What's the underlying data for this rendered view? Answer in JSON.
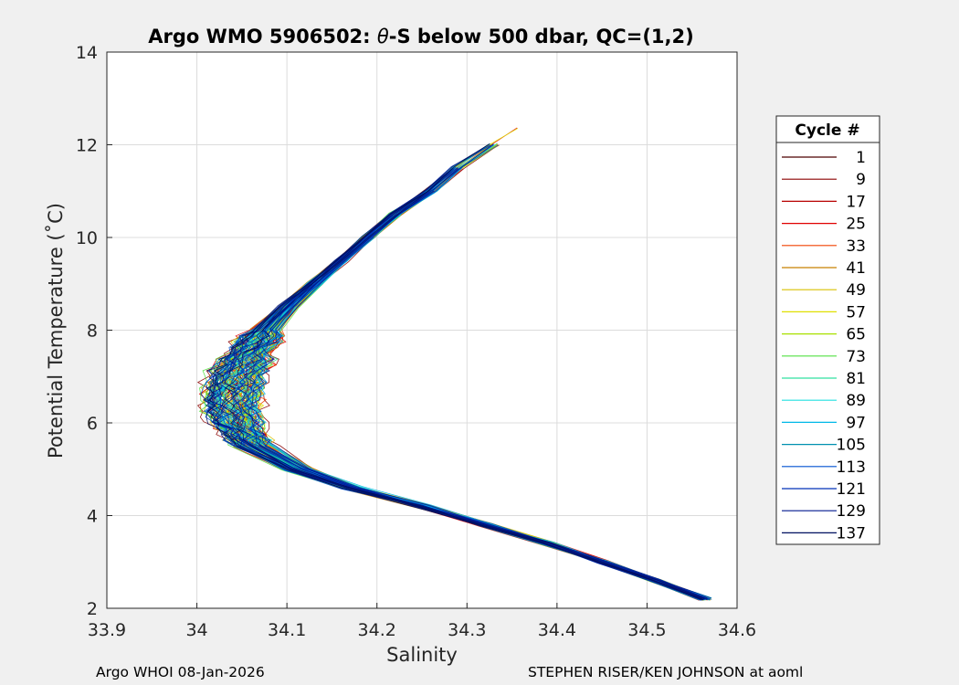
{
  "chart_data": {
    "type": "line",
    "title_prefix": "Argo WMO 5906502: ",
    "title_theta": "θ",
    "title_suffix": "-S below 500 dbar,  QC=(1,2)",
    "xlabel": "Salinity",
    "ylabel": "Potential Temperature (˚C)",
    "xlim": [
      33.9,
      34.6
    ],
    "ylim": [
      2,
      14
    ],
    "xticks": [
      "33.9",
      "34",
      "34.1",
      "34.2",
      "34.3",
      "34.4",
      "34.5",
      "34.6"
    ],
    "yticks": [
      "2",
      "4",
      "6",
      "8",
      "10",
      "12",
      "14"
    ],
    "grid": true,
    "legend": {
      "title": "Cycle #",
      "position": "right",
      "entries": [
        {
          "label": "1",
          "color": "#4d0000"
        },
        {
          "label": "9",
          "color": "#8b0000"
        },
        {
          "label": "17",
          "color": "#b80000"
        },
        {
          "label": "25",
          "color": "#e00000"
        },
        {
          "label": "33",
          "color": "#f04000"
        },
        {
          "label": "41",
          "color": "#c88000"
        },
        {
          "label": "49",
          "color": "#d8c000"
        },
        {
          "label": "57",
          "color": "#e0e000"
        },
        {
          "label": "65",
          "color": "#a8e000"
        },
        {
          "label": "73",
          "color": "#50e040"
        },
        {
          "label": "81",
          "color": "#30e0a0"
        },
        {
          "label": "89",
          "color": "#20e0e0"
        },
        {
          "label": "97",
          "color": "#00b8e8"
        },
        {
          "label": "105",
          "color": "#0090b0"
        },
        {
          "label": "113",
          "color": "#0050d0"
        },
        {
          "label": "121",
          "color": "#0030b8"
        },
        {
          "label": "129",
          "color": "#00188f"
        },
        {
          "label": "137",
          "color": "#001060"
        }
      ]
    },
    "profile_shape": [
      {
        "t": 2.2,
        "s": 34.565
      },
      {
        "t": 2.6,
        "s": 34.51
      },
      {
        "t": 3.0,
        "s": 34.45
      },
      {
        "t": 3.4,
        "s": 34.39
      },
      {
        "t": 3.8,
        "s": 34.32
      },
      {
        "t": 4.2,
        "s": 34.25
      },
      {
        "t": 4.6,
        "s": 34.17
      },
      {
        "t": 5.0,
        "s": 34.11
      },
      {
        "t": 5.5,
        "s": 34.06
      },
      {
        "t": 6.0,
        "s": 34.04
      },
      {
        "t": 6.5,
        "s": 34.035
      },
      {
        "t": 7.0,
        "s": 34.04
      },
      {
        "t": 7.5,
        "s": 34.055
      },
      {
        "t": 8.0,
        "s": 34.075
      },
      {
        "t": 8.5,
        "s": 34.1
      },
      {
        "t": 9.0,
        "s": 34.13
      },
      {
        "t": 9.5,
        "s": 34.16
      },
      {
        "t": 10.0,
        "s": 34.19
      },
      {
        "t": 10.5,
        "s": 34.22
      },
      {
        "t": 11.0,
        "s": 34.26
      },
      {
        "t": 11.5,
        "s": 34.29
      },
      {
        "t": 12.0,
        "s": 34.33
      },
      {
        "t": 12.35,
        "s": 34.36
      }
    ],
    "profile_count": 140
  },
  "footer": {
    "left": "Argo WHOI 08-Jan-2026",
    "right": "STEPHEN RISER/KEN JOHNSON at aoml"
  }
}
